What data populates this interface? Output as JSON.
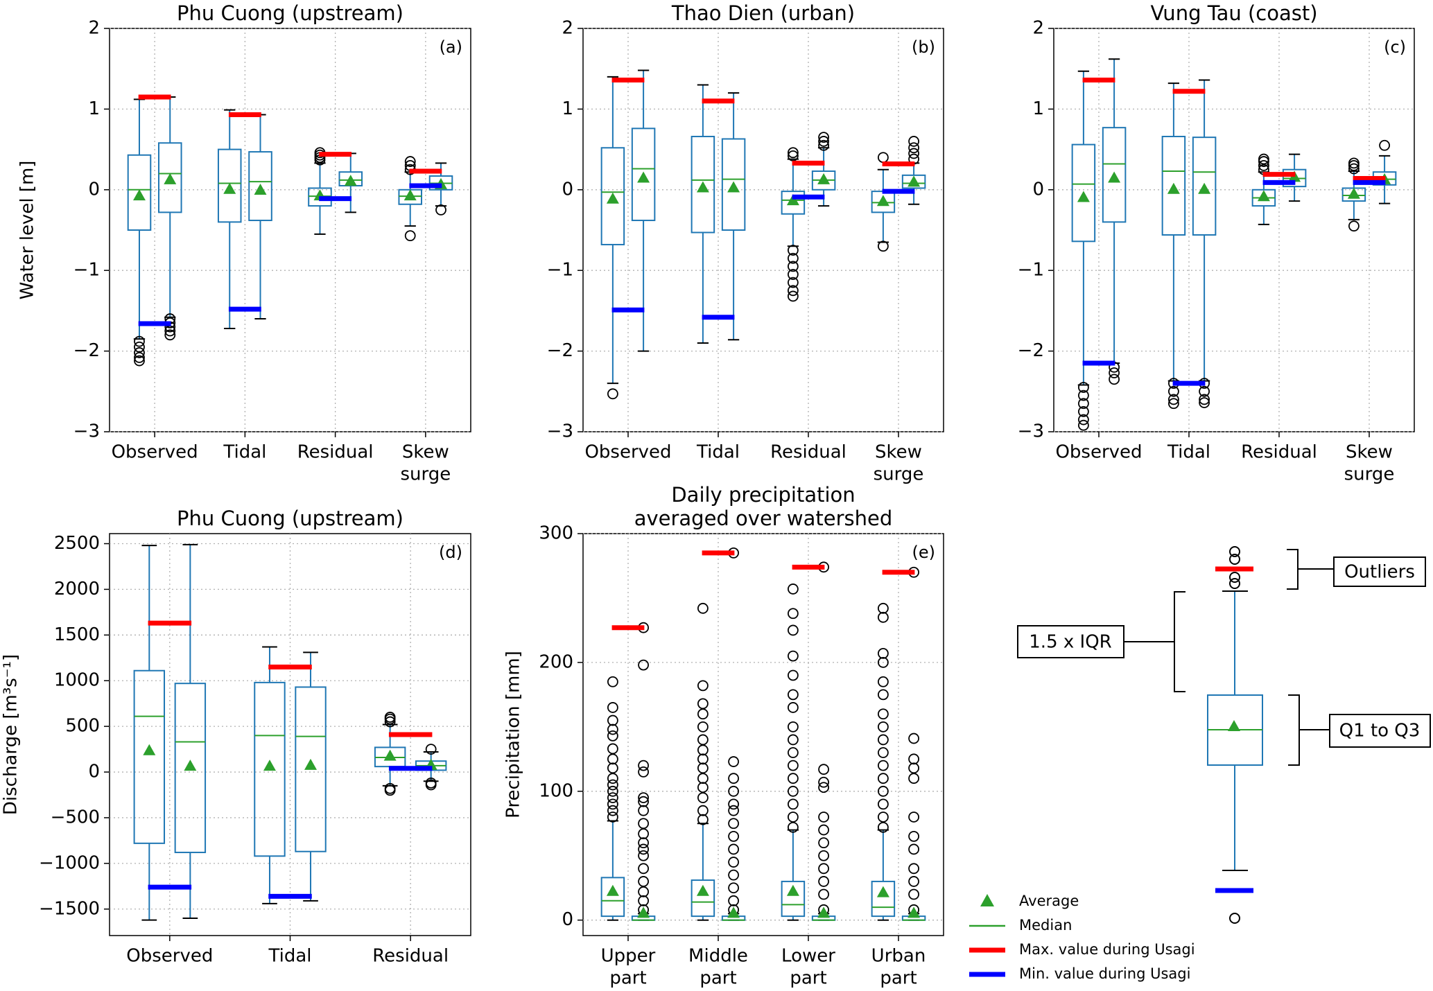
{
  "chart_data": [
    {
      "type": "box",
      "title": [
        "Phu Cuong (upstream)"
      ],
      "panel": "(a)",
      "ylabel": "Water level [m]",
      "ylim": [
        -3,
        2
      ],
      "yticks": [
        {
          "value": -3,
          "label": "−3"
        },
        {
          "value": -2,
          "label": "−2"
        },
        {
          "value": -1,
          "label": "−1"
        },
        0,
        1,
        2
      ],
      "categories": [
        [
          "Observed"
        ],
        [
          "Tidal"
        ],
        [
          "Residual"
        ],
        [
          "Skew",
          "surge"
        ]
      ],
      "boxes": [
        [
          {
            "whislo": -1.85,
            "q1": -0.5,
            "med": 0.0,
            "q3": 0.43,
            "whishi": 1.12,
            "mean": -0.08,
            "fliers": [
              -1.88,
              -1.95,
              -2.02,
              -2.08,
              -2.12
            ]
          },
          {
            "whislo": -1.58,
            "q1": -0.28,
            "med": 0.2,
            "q3": 0.58,
            "whishi": 1.15,
            "mean": 0.12,
            "fliers": [
              -1.6,
              -1.65,
              -1.7,
              -1.75,
              -1.8
            ]
          }
        ],
        [
          {
            "whislo": -1.72,
            "q1": -0.4,
            "med": 0.08,
            "q3": 0.5,
            "whishi": 0.99,
            "mean": 0.0,
            "fliers": []
          },
          {
            "whislo": -1.6,
            "q1": -0.38,
            "med": 0.1,
            "q3": 0.47,
            "whishi": 0.93,
            "mean": -0.01,
            "fliers": []
          }
        ],
        [
          {
            "whislo": -0.55,
            "q1": -0.2,
            "med": -0.08,
            "q3": 0.02,
            "whishi": 0.33,
            "mean": -0.08,
            "fliers": [
              0.37,
              0.4,
              0.43,
              0.46
            ]
          },
          {
            "whislo": -0.28,
            "q1": 0.05,
            "med": 0.12,
            "q3": 0.22,
            "whishi": 0.45,
            "mean": 0.1,
            "fliers": []
          }
        ],
        [
          {
            "whislo": -0.45,
            "q1": -0.18,
            "med": -0.08,
            "q3": 0.0,
            "whishi": 0.22,
            "mean": -0.08,
            "fliers": [
              0.25,
              0.3,
              0.35,
              -0.57
            ]
          },
          {
            "whislo": -0.2,
            "q1": 0.0,
            "med": 0.08,
            "q3": 0.17,
            "whishi": 0.33,
            "mean": 0.06,
            "fliers": [
              -0.25
            ]
          }
        ]
      ],
      "usagi_max": [
        1.15,
        0.93,
        0.44,
        0.23
      ],
      "usagi_min": [
        -1.66,
        -1.48,
        -0.11,
        0.05
      ],
      "grid": true
    },
    {
      "type": "box",
      "title": [
        "Thao Dien (urban)"
      ],
      "panel": "(b)",
      "ylim": [
        -3,
        2
      ],
      "yticks": [
        {
          "value": -3,
          "label": "−3"
        },
        {
          "value": -2,
          "label": "−2"
        },
        {
          "value": -1,
          "label": "−1"
        },
        0,
        1,
        2
      ],
      "categories": [
        [
          "Observed"
        ],
        [
          "Tidal"
        ],
        [
          "Residual"
        ],
        [
          "Skew",
          "surge"
        ]
      ],
      "boxes": [
        [
          {
            "whislo": -2.4,
            "q1": -0.68,
            "med": -0.03,
            "q3": 0.52,
            "whishi": 1.4,
            "mean": -0.12,
            "fliers": [
              -2.53
            ]
          },
          {
            "whislo": -2.0,
            "q1": -0.38,
            "med": 0.26,
            "q3": 0.76,
            "whishi": 1.48,
            "mean": 0.14,
            "fliers": []
          }
        ],
        [
          {
            "whislo": -1.9,
            "q1": -0.53,
            "med": 0.12,
            "q3": 0.66,
            "whishi": 1.3,
            "mean": 0.02,
            "fliers": []
          },
          {
            "whislo": -1.86,
            "q1": -0.5,
            "med": 0.13,
            "q3": 0.63,
            "whishi": 1.2,
            "mean": 0.02,
            "fliers": []
          }
        ],
        [
          {
            "whislo": -0.7,
            "q1": -0.3,
            "med": -0.13,
            "q3": -0.02,
            "whishi": 0.38,
            "mean": -0.14,
            "fliers": [
              0.42,
              0.46,
              -0.75,
              -0.85,
              -0.95,
              -1.05,
              -1.15,
              -1.25,
              -1.32
            ]
          },
          {
            "whislo": -0.2,
            "q1": 0.0,
            "med": 0.12,
            "q3": 0.23,
            "whishi": 0.52,
            "mean": 0.12,
            "fliers": [
              0.55,
              0.6,
              0.65
            ]
          }
        ],
        [
          {
            "whislo": -0.65,
            "q1": -0.28,
            "med": -0.16,
            "q3": -0.02,
            "whishi": 0.25,
            "mean": -0.15,
            "fliers": [
              0.4,
              -0.7
            ]
          },
          {
            "whislo": -0.18,
            "q1": 0.02,
            "med": 0.08,
            "q3": 0.18,
            "whishi": 0.33,
            "mean": 0.09,
            "fliers": [
              0.38,
              0.45,
              0.52,
              0.6
            ]
          }
        ]
      ],
      "usagi_max": [
        1.36,
        1.1,
        0.33,
        0.32
      ],
      "usagi_min": [
        -1.49,
        -1.58,
        -0.09,
        -0.02
      ],
      "grid": true
    },
    {
      "type": "box",
      "title": [
        "Vung Tau (coast)"
      ],
      "panel": "(c)",
      "ylim": [
        -3,
        2
      ],
      "yticks": [
        {
          "value": -3,
          "label": "−3"
        },
        {
          "value": -2,
          "label": "−2"
        },
        {
          "value": -1,
          "label": "−1"
        },
        0,
        1,
        2
      ],
      "categories": [
        [
          "Observed"
        ],
        [
          "Tidal"
        ],
        [
          "Residual"
        ],
        [
          "Skew",
          "surge"
        ]
      ],
      "boxes": [
        [
          {
            "whislo": -2.42,
            "q1": -0.64,
            "med": 0.07,
            "q3": 0.56,
            "whishi": 1.47,
            "mean": -0.1,
            "fliers": [
              -2.45,
              -2.55,
              -2.65,
              -2.75,
              -2.85,
              -2.92
            ]
          },
          {
            "whislo": -2.15,
            "q1": -0.4,
            "med": 0.32,
            "q3": 0.77,
            "whishi": 1.62,
            "mean": 0.14,
            "fliers": [
              -2.2,
              -2.27,
              -2.35
            ]
          }
        ],
        [
          {
            "whislo": -2.37,
            "q1": -0.56,
            "med": 0.23,
            "q3": 0.66,
            "whishi": 1.32,
            "mean": 0.0,
            "fliers": [
              -2.4,
              -2.5,
              -2.6,
              -2.65
            ]
          },
          {
            "whislo": -2.37,
            "q1": -0.56,
            "med": 0.22,
            "q3": 0.65,
            "whishi": 1.36,
            "mean": 0.0,
            "fliers": [
              -2.4,
              -2.5,
              -2.6,
              -2.64
            ]
          }
        ],
        [
          {
            "whislo": -0.43,
            "q1": -0.2,
            "med": -0.1,
            "q3": 0.0,
            "whishi": 0.22,
            "mean": -0.09,
            "fliers": [
              0.25,
              0.3,
              0.35,
              0.38
            ]
          },
          {
            "whislo": -0.14,
            "q1": 0.04,
            "med": 0.14,
            "q3": 0.25,
            "whishi": 0.44,
            "mean": 0.15,
            "fliers": []
          }
        ],
        [
          {
            "whislo": -0.37,
            "q1": -0.14,
            "med": -0.07,
            "q3": 0.02,
            "whishi": 0.23,
            "mean": -0.06,
            "fliers": [
              0.26,
              0.3,
              0.33,
              -0.45
            ]
          },
          {
            "whislo": -0.17,
            "q1": 0.06,
            "med": 0.13,
            "q3": 0.22,
            "whishi": 0.42,
            "mean": 0.12,
            "fliers": [
              0.55
            ]
          }
        ]
      ],
      "usagi_max": [
        1.36,
        1.22,
        0.19,
        0.14
      ],
      "usagi_min": [
        -2.15,
        -2.4,
        0.09,
        0.09
      ],
      "grid": true
    },
    {
      "type": "box",
      "title": [
        "Phu Cuong (upstream)"
      ],
      "panel": "(d)",
      "ylabel": "Discharge [m³s⁻¹]",
      "ylim": [
        -1790,
        2610
      ],
      "yticks": [
        {
          "value": -1500,
          "label": "−1500"
        },
        {
          "value": -1000,
          "label": "−1000"
        },
        {
          "value": -500,
          "label": "−500"
        },
        0,
        500,
        1000,
        1500,
        2000,
        2500
      ],
      "categories": [
        [
          "Observed"
        ],
        [
          "Tidal"
        ],
        [
          "Residual"
        ]
      ],
      "boxes": [
        [
          {
            "whislo": -1620,
            "q1": -780,
            "med": 610,
            "q3": 1110,
            "whishi": 2480,
            "mean": 230,
            "fliers": []
          },
          {
            "whislo": -1600,
            "q1": -880,
            "med": 330,
            "q3": 970,
            "whishi": 2490,
            "mean": 60,
            "fliers": []
          }
        ],
        [
          {
            "whislo": -1440,
            "q1": -920,
            "med": 400,
            "q3": 980,
            "whishi": 1370,
            "mean": 60,
            "fliers": []
          },
          {
            "whislo": -1410,
            "q1": -870,
            "med": 390,
            "q3": 930,
            "whishi": 1310,
            "mean": 70,
            "fliers": []
          }
        ],
        [
          {
            "whislo": -150,
            "q1": 60,
            "med": 160,
            "q3": 270,
            "whishi": 520,
            "mean": 170,
            "fliers": [
              550,
              580,
              600,
              -180,
              -200
            ]
          },
          {
            "whislo": -100,
            "q1": 20,
            "med": 70,
            "q3": 120,
            "whishi": 220,
            "mean": 70,
            "fliers": [
              250,
              -120,
              -140
            ]
          }
        ]
      ],
      "usagi_max": [
        1630,
        1150,
        410
      ],
      "usagi_min": [
        -1260,
        -1360,
        40
      ],
      "grid": true
    },
    {
      "type": "box",
      "title": [
        "Daily precipitation",
        "averaged over watershed"
      ],
      "panel": "(e)",
      "ylabel": "Precipitation [mm]",
      "ylim": [
        -12,
        300
      ],
      "yticks": [
        0,
        100,
        200,
        300
      ],
      "categories": [
        [
          "Upper",
          "part"
        ],
        [
          "Middle",
          "part"
        ],
        [
          "Lower",
          "part"
        ],
        [
          "Urban",
          "part"
        ]
      ],
      "boxes": [
        [
          {
            "whislo": 0,
            "q1": 3,
            "med": 15,
            "q3": 33,
            "whishi": 77,
            "mean": 22,
            "fliers": [
              80,
              85,
              90,
              95,
              100,
              105,
              110,
              118,
              125,
              133,
              143,
              148,
              155,
              165,
              185
            ]
          },
          {
            "whislo": 0,
            "q1": 0,
            "med": 0,
            "q3": 3,
            "whishi": 5,
            "mean": 5,
            "fliers": [
              8,
              15,
              22,
              30,
              40,
              50,
              55,
              60,
              67,
              75,
              85,
              92,
              95,
              115,
              120,
              198,
              227
            ]
          }
        ],
        [
          {
            "whislo": 0,
            "q1": 3,
            "med": 14,
            "q3": 31,
            "whishi": 75,
            "mean": 22,
            "fliers": [
              78,
              85,
              95,
              103,
              110,
              118,
              125,
              132,
              140,
              150,
              160,
              168,
              182,
              242
            ]
          },
          {
            "whislo": 0,
            "q1": 0,
            "med": 0,
            "q3": 3,
            "whishi": 5,
            "mean": 5,
            "fliers": [
              8,
              15,
              25,
              35,
              45,
              55,
              65,
              75,
              85,
              90,
              100,
              110,
              123,
              285
            ]
          }
        ],
        [
          {
            "whislo": 0,
            "q1": 3,
            "med": 12,
            "q3": 30,
            "whishi": 70,
            "mean": 22,
            "fliers": [
              72,
              80,
              90,
              100,
              110,
              120,
              130,
              140,
              150,
              165,
              175,
              190,
              205,
              225,
              238,
              257
            ]
          },
          {
            "whislo": 0,
            "q1": 0,
            "med": 0,
            "q3": 3,
            "whishi": 5,
            "mean": 5,
            "fliers": [
              8,
              20,
              30,
              40,
              50,
              60,
              70,
              80,
              103,
              107,
              117,
              274
            ]
          }
        ],
        [
          {
            "whislo": 0,
            "q1": 3,
            "med": 10,
            "q3": 30,
            "whishi": 70,
            "mean": 21,
            "fliers": [
              72,
              80,
              90,
              100,
              110,
              120,
              130,
              140,
              150,
              160,
              175,
              185,
              200,
              207,
              235,
              242
            ]
          },
          {
            "whislo": 0,
            "q1": 0,
            "med": 0,
            "q3": 3,
            "whishi": 5,
            "mean": 5,
            "fliers": [
              8,
              20,
              30,
              40,
              55,
              65,
              80,
              110,
              118,
              125,
              141,
              270
            ]
          }
        ]
      ],
      "usagi_max": [
        227,
        285,
        274,
        270
      ],
      "usagi_min": [
        null,
        null,
        null,
        null
      ],
      "grid": true
    }
  ],
  "box_color": "#1f77b4",
  "legend": [
    {
      "name": "Average",
      "color": "#2ca02c"
    },
    {
      "name": "Median",
      "color": "#2ca02c"
    },
    {
      "name": "Max. value during Usagi",
      "color": "#ff0000"
    },
    {
      "name": "Min. value during Usagi",
      "color": "#0000ff"
    }
  ],
  "example": {
    "labels": [
      "Outliers",
      "1.5 x IQR",
      "Q1 to Q3"
    ]
  }
}
